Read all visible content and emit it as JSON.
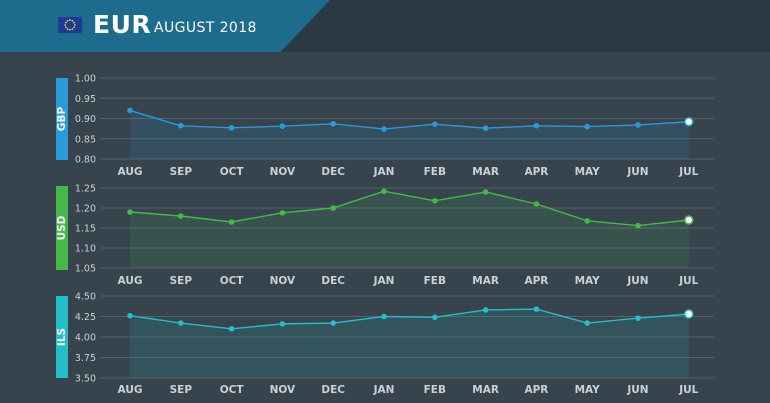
{
  "header": {
    "currency_code": "EUR",
    "period": "AUGUST 2018",
    "flag_icon": "eu-flag-icon",
    "tab_color": "#1d6c8e",
    "band_color": "#2a3a44"
  },
  "colors": {
    "background": "#37444d",
    "grid": "#55626a",
    "tick_text": "#c8d1d6",
    "last_point_fill": "#ffffff"
  },
  "chart_data": [
    {
      "type": "area",
      "ylabel": "GBP",
      "color": "#2a9bd6",
      "categories": [
        "AUG",
        "SEP",
        "OCT",
        "NOV",
        "DEC",
        "JAN",
        "FEB",
        "MAR",
        "APR",
        "MAY",
        "JUN",
        "JUL"
      ],
      "values": [
        0.92,
        0.882,
        0.877,
        0.881,
        0.887,
        0.874,
        0.886,
        0.876,
        0.882,
        0.88,
        0.884,
        0.892
      ],
      "yticks": [
        "1.00",
        "0.95",
        "0.90",
        "0.85",
        "0.80"
      ],
      "ylim": [
        0.8,
        1.0
      ],
      "grid": true
    },
    {
      "type": "area",
      "ylabel": "USD",
      "color": "#46b84a",
      "categories": [
        "AUG",
        "SEP",
        "OCT",
        "NOV",
        "DEC",
        "JAN",
        "FEB",
        "MAR",
        "APR",
        "MAY",
        "JUN",
        "JUL"
      ],
      "values": [
        1.19,
        1.18,
        1.165,
        1.188,
        1.2,
        1.242,
        1.218,
        1.24,
        1.21,
        1.168,
        1.156,
        1.17
      ],
      "yticks": [
        "1.25",
        "1.20",
        "1.15",
        "1.10",
        "1.05"
      ],
      "ylim": [
        1.05,
        1.25
      ],
      "grid": true
    },
    {
      "type": "area",
      "ylabel": "ILS",
      "color": "#22bfc8",
      "categories": [
        "AUG",
        "SEP",
        "OCT",
        "NOV",
        "DEC",
        "JAN",
        "FEB",
        "MAR",
        "APR",
        "MAY",
        "JUN",
        "JUL"
      ],
      "values": [
        4.26,
        4.17,
        4.1,
        4.16,
        4.17,
        4.25,
        4.24,
        4.33,
        4.34,
        4.17,
        4.23,
        4.28
      ],
      "yticks": [
        "4.50",
        "4.25",
        "4.00",
        "3.75",
        "3.50"
      ],
      "ylim": [
        3.5,
        4.5
      ],
      "grid": true
    }
  ]
}
